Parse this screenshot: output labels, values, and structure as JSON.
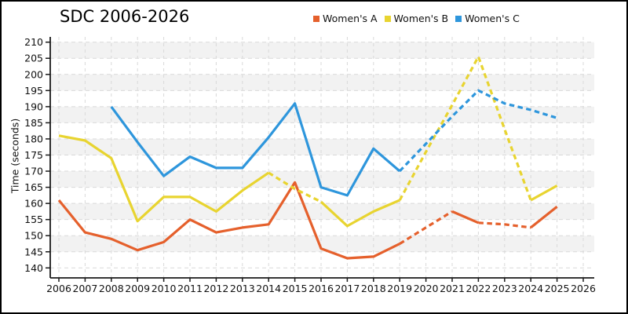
{
  "title": "SDC 2006-2026",
  "chart_data": {
    "type": "line",
    "title": "SDC 2006-2026",
    "xlabel": "",
    "ylabel": "Time (seconds)",
    "ylim": [
      140,
      210
    ],
    "ytick_step": 5,
    "yticks": [
      140,
      145,
      150,
      155,
      160,
      165,
      170,
      175,
      180,
      185,
      190,
      195,
      200,
      205,
      210
    ],
    "xticks": [
      2006,
      2007,
      2008,
      2009,
      2010,
      2011,
      2012,
      2013,
      2014,
      2015,
      2016,
      2017,
      2018,
      2019,
      2020,
      2021,
      2022,
      2023,
      2024,
      2025,
      2026
    ],
    "grid": true,
    "grid_style": "dashed",
    "background_bands": true,
    "legend_position": "top-center",
    "colors": {
      "band_gray": "#f2f2f2",
      "grid": "#d9d9d9",
      "spine": "#1a1a1a",
      "womens_a": "#E5602C",
      "womens_b": "#E8D430",
      "womens_c": "#2E96DC"
    },
    "note": "dashed_spans are year ranges where the line is drawn dashed (projected values)",
    "series": [
      {
        "name": "Women's A",
        "color": "#E5602C",
        "start_year": 2006,
        "values": [
          161,
          151,
          149,
          145.5,
          148,
          155,
          151,
          152.5,
          153.5,
          166.5,
          146,
          143,
          143.5,
          147.5,
          152.5,
          157.5,
          154,
          153.5,
          152.5,
          159
        ],
        "dashed_spans": [
          [
            2019,
            2021
          ],
          [
            2022,
            2024
          ]
        ]
      },
      {
        "name": "Women's B",
        "color": "#E8D430",
        "start_year": 2006,
        "values": [
          181,
          179.5,
          174,
          154.5,
          162,
          162,
          157.5,
          164,
          169.5,
          164.5,
          160.5,
          153,
          157.5,
          161,
          176,
          190.5,
          205.5,
          183,
          161,
          165.5
        ],
        "dashed_spans": [
          [
            2014,
            2016
          ],
          [
            2019,
            2024
          ]
        ]
      },
      {
        "name": "Women's C",
        "color": "#2E96DC",
        "start_year": 2008,
        "values": [
          190,
          179,
          168.5,
          174.5,
          171,
          171,
          180.5,
          191,
          165,
          162.5,
          177,
          170,
          178.5,
          187,
          195,
          191,
          189,
          186.5
        ],
        "dashed_spans": [
          [
            2019,
            2025
          ]
        ]
      }
    ]
  }
}
